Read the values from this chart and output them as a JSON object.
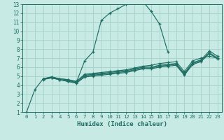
{
  "xlabel": "Humidex (Indice chaleur)",
  "bg_color": "#c8eae4",
  "line_color": "#1e6e64",
  "grid_color": "#a8d4cc",
  "xlim": [
    -0.5,
    23.5
  ],
  "ylim": [
    1,
    13
  ],
  "xticks": [
    0,
    1,
    2,
    3,
    4,
    5,
    6,
    7,
    8,
    9,
    10,
    11,
    12,
    13,
    14,
    15,
    16,
    17,
    18,
    19,
    20,
    21,
    22,
    23
  ],
  "yticks": [
    1,
    2,
    3,
    4,
    5,
    6,
    7,
    8,
    9,
    10,
    11,
    12,
    13
  ],
  "lines": [
    {
      "x": [
        0,
        1,
        2,
        3,
        4,
        5,
        6,
        7,
        8,
        9,
        10,
        11,
        12,
        13,
        14,
        15,
        16,
        17
      ],
      "y": [
        1,
        3.5,
        4.7,
        4.8,
        4.6,
        4.4,
        4.3,
        6.7,
        7.7,
        11.2,
        12.0,
        12.5,
        13.0,
        13.2,
        13.3,
        12.2,
        10.8,
        7.7
      ]
    },
    {
      "x": [
        2,
        3,
        4,
        5,
        6,
        7,
        8,
        9,
        10,
        11,
        12,
        13,
        14,
        15,
        16,
        17,
        18,
        19,
        20,
        21,
        22,
        23
      ],
      "y": [
        4.7,
        4.9,
        4.7,
        4.6,
        4.4,
        5.2,
        5.3,
        5.4,
        5.5,
        5.6,
        5.7,
        5.9,
        6.1,
        6.2,
        6.4,
        6.5,
        6.6,
        5.5,
        6.7,
        7.0,
        7.2,
        7.0
      ]
    },
    {
      "x": [
        2,
        3,
        4,
        5,
        6,
        7,
        8,
        9,
        10,
        11,
        12,
        13,
        14,
        15,
        16,
        17,
        18,
        19,
        20,
        21,
        22,
        23
      ],
      "y": [
        4.7,
        4.9,
        4.7,
        4.6,
        4.4,
        5.1,
        5.2,
        5.3,
        5.4,
        5.5,
        5.6,
        5.8,
        6.0,
        6.0,
        6.2,
        6.3,
        6.4,
        5.3,
        6.5,
        6.8,
        7.8,
        7.2
      ]
    },
    {
      "x": [
        2,
        3,
        4,
        5,
        6,
        7,
        8,
        9,
        10,
        11,
        12,
        13,
        14,
        15,
        16,
        17,
        18,
        19,
        20,
        21,
        22,
        23
      ],
      "y": [
        4.7,
        4.8,
        4.6,
        4.5,
        4.3,
        5.0,
        5.1,
        5.2,
        5.3,
        5.4,
        5.5,
        5.7,
        5.9,
        5.9,
        6.1,
        6.2,
        6.3,
        5.2,
        6.4,
        6.7,
        7.6,
        7.0
      ]
    },
    {
      "x": [
        2,
        3,
        4,
        5,
        6,
        7,
        8,
        9,
        10,
        11,
        12,
        13,
        14,
        15,
        16,
        17,
        18,
        19,
        20,
        21,
        22,
        23
      ],
      "y": [
        4.6,
        4.8,
        4.6,
        4.4,
        4.2,
        4.9,
        5.0,
        5.1,
        5.2,
        5.3,
        5.4,
        5.6,
        5.8,
        5.8,
        6.0,
        6.1,
        6.2,
        5.1,
        6.3,
        6.6,
        7.5,
        6.9
      ]
    }
  ]
}
